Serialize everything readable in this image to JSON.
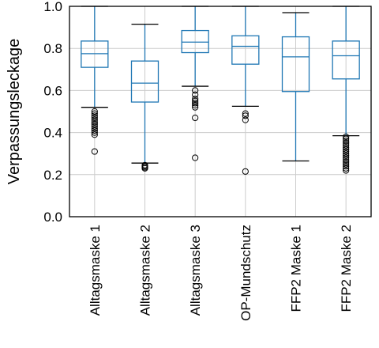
{
  "chart_data": {
    "type": "boxplot",
    "title": "",
    "xlabel": "",
    "ylabel": "Verpassungsleckage",
    "ylim": [
      0.0,
      1.0
    ],
    "yticks": [
      "0.0",
      "0.2",
      "0.4",
      "0.6",
      "0.8",
      "1.0"
    ],
    "grid": true,
    "colors": {
      "box": "#1f77b4",
      "median": "#1f77b4",
      "whisker": "#1f77b4",
      "cap": "#000000",
      "grid": "#cccccc",
      "frame": "#000000"
    },
    "categories": [
      "Alltagsmaske 1",
      "Alltagsmaske 2",
      "Alltagsmaske 3",
      "OP-Mundschutz",
      "FFP2 Maske 1",
      "FFP2 Maske 2"
    ],
    "boxes": [
      {
        "category": "Alltagsmaske 1",
        "whisker_low": 0.52,
        "q1": 0.71,
        "median": 0.775,
        "q3": 0.835,
        "whisker_high": 1.0,
        "outliers": [
          0.5,
          0.49,
          0.48,
          0.47,
          0.46,
          0.45,
          0.44,
          0.43,
          0.42,
          0.41,
          0.4,
          0.39,
          0.31
        ]
      },
      {
        "category": "Alltagsmaske 2",
        "whisker_low": 0.255,
        "q1": 0.545,
        "median": 0.635,
        "q3": 0.74,
        "whisker_high": 0.915,
        "outliers": [
          0.245,
          0.24,
          0.235,
          0.23
        ]
      },
      {
        "category": "Alltagsmaske 3",
        "whisker_low": 0.62,
        "q1": 0.78,
        "median": 0.83,
        "q3": 0.885,
        "whisker_high": 1.0,
        "outliers": [
          0.6,
          0.58,
          0.56,
          0.55,
          0.54,
          0.53,
          0.52,
          0.47,
          0.28
        ]
      },
      {
        "category": "OP-Mundschutz",
        "whisker_low": 0.525,
        "q1": 0.725,
        "median": 0.81,
        "q3": 0.86,
        "whisker_high": 1.0,
        "outliers": [
          0.49,
          0.48,
          0.46,
          0.215
        ]
      },
      {
        "category": "FFP2 Maske 1",
        "whisker_low": 0.265,
        "q1": 0.595,
        "median": 0.76,
        "q3": 0.855,
        "whisker_high": 0.97,
        "outliers": []
      },
      {
        "category": "FFP2 Maske 2",
        "whisker_low": 0.385,
        "q1": 0.655,
        "median": 0.765,
        "q3": 0.835,
        "whisker_high": 1.0,
        "outliers": [
          0.38,
          0.37,
          0.36,
          0.35,
          0.34,
          0.33,
          0.32,
          0.31,
          0.3,
          0.29,
          0.28,
          0.27,
          0.26,
          0.25,
          0.24,
          0.23,
          0.22
        ]
      }
    ]
  }
}
